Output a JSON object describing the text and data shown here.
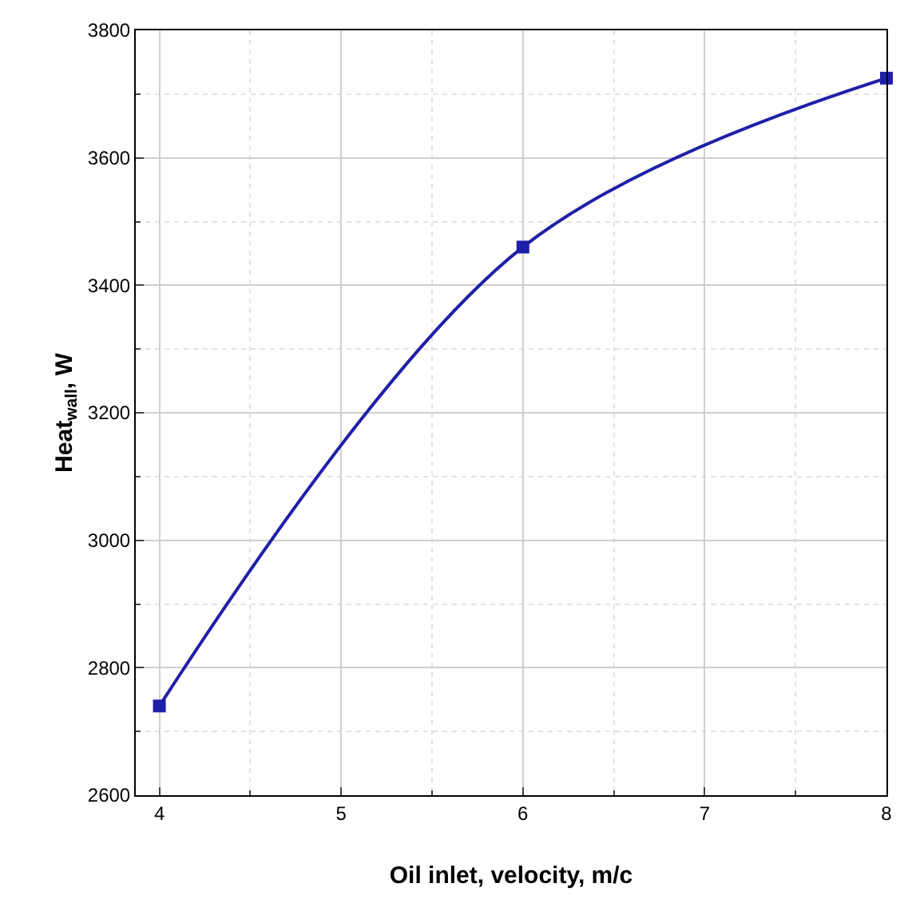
{
  "chart_data": {
    "type": "line",
    "xlabel": "Oil inlet, velocity, m/c",
    "ylabel": "Heat$_{wall}$, W",
    "x": [
      4,
      6,
      8
    ],
    "series": [
      {
        "color": "#1f1fa8",
        "values": [
          2740,
          3460,
          3725
        ]
      }
    ],
    "xlim": [
      3.87,
      8
    ],
    "xticks": [
      4,
      5,
      6,
      7,
      8
    ],
    "ylim": [
      2600,
      3800
    ],
    "yticks": [
      2600,
      2800,
      3000,
      3200,
      3400,
      3600,
      3800
    ],
    "grid": true,
    "marker": "square",
    "line_style": "solid"
  }
}
